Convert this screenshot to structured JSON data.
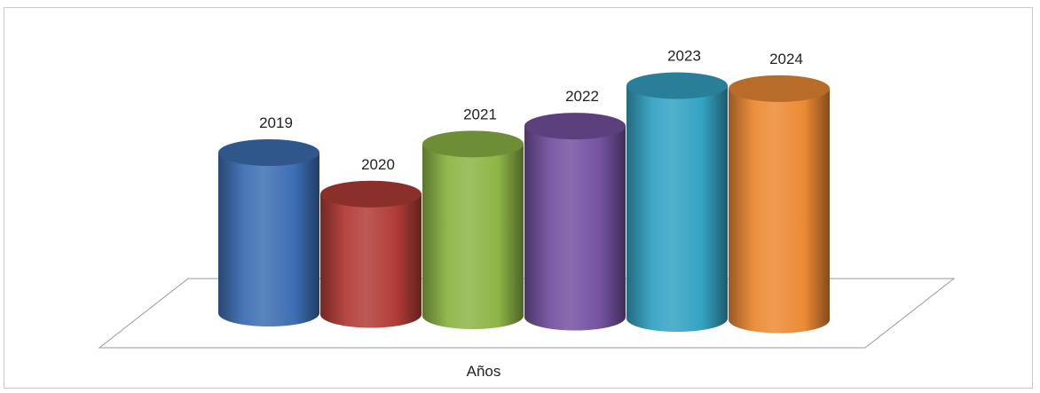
{
  "chart_data": {
    "type": "bar",
    "subtype": "3d-cylinder",
    "title": "",
    "xlabel": "Años",
    "ylabel": "",
    "categories": [
      "2019",
      "2020",
      "2021",
      "2022",
      "2023",
      "2024"
    ],
    "values": [
      100,
      75,
      107,
      119,
      145,
      144
    ],
    "colors": [
      "#3d6fb3",
      "#b23c37",
      "#8db546",
      "#7552a0",
      "#34a3c3",
      "#ec8a35"
    ],
    "ylim": [
      0,
      160
    ],
    "grid": false,
    "legend": "none",
    "data_labels": "category names above bars"
  }
}
